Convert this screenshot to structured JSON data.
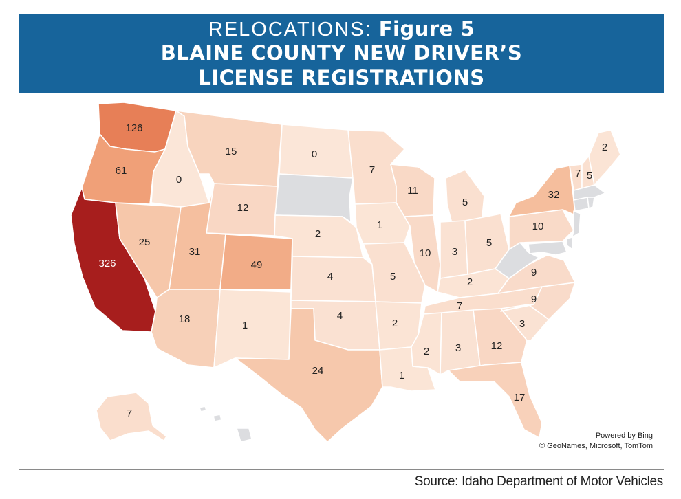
{
  "header": {
    "title_lead": "RELOCATIONS:",
    "title_figure": "Figure 5",
    "title_main": "BLAINE COUNTY NEW DRIVER’S LICENSE REGISTRATIONS"
  },
  "attribution": {
    "powered_by": "Powered by Bing",
    "credits": "© GeoNames, Microsoft, TomTom"
  },
  "source": "Source: Idaho Department of Motor Vehicles",
  "legend_colors": {
    "no_data": "#dcdde0",
    "lowest": "#fbe6d8",
    "highest": "#a61c1c"
  },
  "map_data": {
    "type": "choropleth",
    "states": [
      {
        "state": "Washington",
        "value": 126
      },
      {
        "state": "Oregon",
        "value": 61
      },
      {
        "state": "California",
        "value": 326
      },
      {
        "state": "Idaho",
        "value": 0
      },
      {
        "state": "Nevada",
        "value": 25
      },
      {
        "state": "Montana",
        "value": 15
      },
      {
        "state": "Wyoming",
        "value": 12
      },
      {
        "state": "Utah",
        "value": 31
      },
      {
        "state": "Colorado",
        "value": 49
      },
      {
        "state": "Arizona",
        "value": 18
      },
      {
        "state": "New Mexico",
        "value": 1
      },
      {
        "state": "North Dakota",
        "value": 0
      },
      {
        "state": "South Dakota",
        "value": null
      },
      {
        "state": "Nebraska",
        "value": 2
      },
      {
        "state": "Kansas",
        "value": 4
      },
      {
        "state": "Oklahoma",
        "value": 4
      },
      {
        "state": "Texas",
        "value": 24
      },
      {
        "state": "Minnesota",
        "value": 7
      },
      {
        "state": "Iowa",
        "value": 1
      },
      {
        "state": "Missouri",
        "value": 5
      },
      {
        "state": "Arkansas",
        "value": 2
      },
      {
        "state": "Louisiana",
        "value": 1
      },
      {
        "state": "Wisconsin",
        "value": 11
      },
      {
        "state": "Illinois",
        "value": 10
      },
      {
        "state": "Michigan",
        "value": 5
      },
      {
        "state": "Indiana",
        "value": 3
      },
      {
        "state": "Ohio",
        "value": 5
      },
      {
        "state": "Kentucky",
        "value": 2
      },
      {
        "state": "Tennessee",
        "value": 7
      },
      {
        "state": "Mississippi",
        "value": 2
      },
      {
        "state": "Alabama",
        "value": 3
      },
      {
        "state": "Georgia",
        "value": 12
      },
      {
        "state": "Florida",
        "value": 17
      },
      {
        "state": "South Carolina",
        "value": 3
      },
      {
        "state": "North Carolina",
        "value": 9
      },
      {
        "state": "Virginia",
        "value": 9
      },
      {
        "state": "West Virginia",
        "value": null
      },
      {
        "state": "Pennsylvania",
        "value": 10
      },
      {
        "state": "New York",
        "value": 32
      },
      {
        "state": "Vermont",
        "value": 7
      },
      {
        "state": "New Hampshire",
        "value": 5
      },
      {
        "state": "Maine",
        "value": 2
      },
      {
        "state": "Massachusetts",
        "value": null
      },
      {
        "state": "Connecticut",
        "value": null
      },
      {
        "state": "Rhode Island",
        "value": null
      },
      {
        "state": "New Jersey",
        "value": null
      },
      {
        "state": "Delaware",
        "value": null
      },
      {
        "state": "Maryland",
        "value": null
      },
      {
        "state": "Alaska",
        "value": 7
      },
      {
        "state": "Hawaii",
        "value": null
      }
    ]
  }
}
